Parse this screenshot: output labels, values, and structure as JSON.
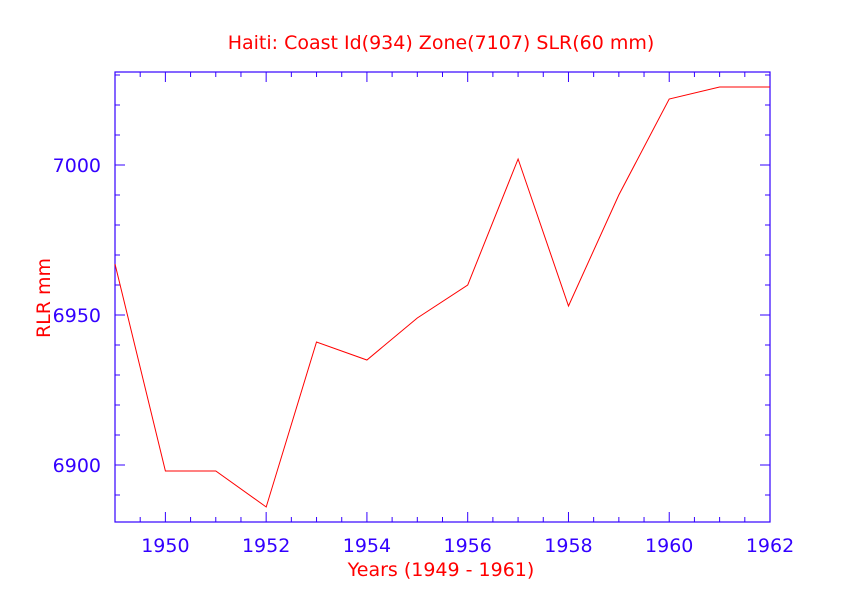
{
  "chart_data": {
    "type": "line",
    "title": "Haiti:  Coast Id(934) Zone(7107) SLR(60 mm)",
    "xlabel": "Years (1949 - 1961)",
    "ylabel": "RLR mm",
    "xlim": [
      1949,
      1962
    ],
    "ylim": [
      6881,
      7031
    ],
    "x_ticks": [
      1950,
      1952,
      1954,
      1956,
      1958,
      1960,
      1962
    ],
    "x_tick_labels": [
      "1950",
      "1952",
      "1954",
      "1956",
      "1958",
      "1960",
      "1962"
    ],
    "y_ticks": [
      6900,
      6950,
      7000
    ],
    "y_tick_labels": [
      "6900",
      "6950",
      "7000"
    ],
    "grid": false,
    "colors": {
      "axis": "#3300ff",
      "series": "#ff0000",
      "title": "#ff0000"
    },
    "series": [
      {
        "x": [
          1949,
          1950,
          1951,
          1952,
          1953,
          1954,
          1955,
          1956,
          1957,
          1958,
          1959,
          1960,
          1961,
          1962
        ],
        "values": [
          6967,
          6898,
          6898,
          6886,
          6941,
          6935,
          6949,
          6960,
          7002,
          6953,
          6990,
          7022,
          7026,
          7026
        ]
      }
    ]
  }
}
